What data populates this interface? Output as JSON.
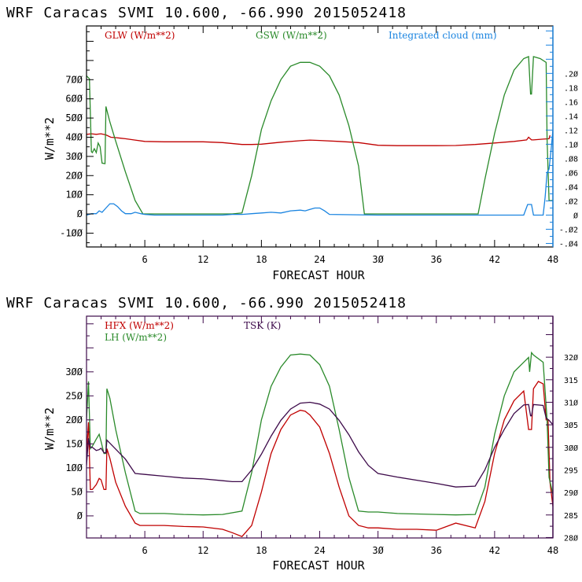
{
  "chart_data": [
    {
      "type": "line",
      "title": "WRF  Caracas SVMI  10.600, -66.990  2015052418",
      "xlabel": "FORECAST HOUR",
      "ylabel": "W/m**2",
      "y2label": "",
      "xlim": [
        0,
        48
      ],
      "ylim": [
        -172,
        980
      ],
      "y2lim": [
        -0.045,
        0.267
      ],
      "xticks": [
        6,
        12,
        18,
        24,
        30,
        36,
        42,
        48
      ],
      "xtick_labels": [
        "6",
        "12",
        "18",
        "24",
        "3Ø",
        "36",
        "42",
        "48"
      ],
      "yticks": [
        -100,
        0,
        100,
        200,
        300,
        400,
        500,
        600,
        700
      ],
      "ytick_labels": [
        "-1ØØ",
        "Ø",
        "1ØØ",
        "2ØØ",
        "3ØØ",
        "4ØØ",
        "5ØØ",
        "6ØØ",
        "7ØØ"
      ],
      "y2ticks": [
        -0.04,
        -0.02,
        0,
        0.02,
        0.04,
        0.06,
        0.08,
        0.1,
        0.12,
        0.14,
        0.16,
        0.18,
        0.2
      ],
      "y2tick_labels": [
        "-.Ø4",
        "-.Ø2",
        "Ø",
        ".Ø2",
        ".Ø4",
        ".Ø6",
        ".Ø8",
        ".1Ø",
        ".12",
        ".14",
        ".16",
        ".18",
        ".2Ø"
      ],
      "frame_color": "#000000",
      "right_axis_color": "#1a84e0",
      "grid": false,
      "legend_position": "top-inside",
      "series": [
        {
          "name": "GLW (W/m**2)",
          "color": "#c00000",
          "axis": "left",
          "x": [
            0,
            0.5,
            1,
            1.5,
            2,
            2.5,
            3,
            3.5,
            4,
            5,
            6,
            8,
            10,
            12,
            14,
            16,
            17,
            18,
            20,
            22,
            23,
            24,
            26,
            28,
            30,
            32,
            34,
            36,
            38,
            40,
            42,
            44,
            45.3,
            45.5,
            45.8,
            46,
            47,
            47.6,
            47.7
          ],
          "values": [
            415,
            418,
            415,
            418,
            412,
            400,
            398,
            395,
            392,
            385,
            378,
            376,
            376,
            376,
            372,
            362,
            362,
            364,
            374,
            382,
            385,
            383,
            378,
            372,
            358,
            356,
            356,
            356,
            357,
            362,
            370,
            378,
            386,
            400,
            386,
            386,
            390,
            392,
            410
          ]
        },
        {
          "name": "GSW (W/m**2)",
          "color": "#2a8a2a",
          "axis": "left",
          "x": [
            0,
            0.3,
            0.5,
            0.6,
            0.8,
            1,
            1.2,
            1.4,
            1.6,
            1.9,
            2,
            2.1,
            2.4,
            3,
            4,
            5,
            5.8,
            6,
            10,
            15,
            16,
            17,
            18,
            19,
            20,
            21,
            22,
            23,
            24,
            25,
            26,
            27,
            28,
            28.6,
            30,
            35,
            40.3,
            41,
            42,
            43,
            44,
            45,
            45.5,
            45.7,
            45.8,
            46,
            46.7,
            47.3,
            47.4,
            47.6,
            48
          ],
          "values": [
            720,
            705,
            325,
            320,
            340,
            320,
            370,
            350,
            265,
            262,
            560,
            540,
            480,
            380,
            220,
            70,
            0,
            0,
            0,
            0,
            5,
            200,
            440,
            590,
            700,
            770,
            790,
            790,
            770,
            720,
            620,
            460,
            250,
            0,
            0,
            0,
            0,
            180,
            420,
            620,
            750,
            810,
            820,
            625,
            625,
            820,
            810,
            790,
            390,
            70,
            70
          ]
        },
        {
          "name": "Integrated cloud (mm)",
          "color": "#1a84e0",
          "axis": "right",
          "x": [
            0,
            0.5,
            1,
            1.3,
            1.6,
            2,
            2.4,
            2.8,
            3.2,
            3.6,
            4,
            4.6,
            5,
            5.6,
            6,
            7,
            8,
            10,
            14,
            15,
            16,
            17,
            18,
            19,
            20,
            21,
            22,
            22.5,
            23,
            23.5,
            24,
            24.5,
            25,
            30,
            35,
            40,
            45,
            45.4,
            45.5,
            45.8,
            46,
            47,
            47.2,
            47.4,
            47.6,
            47.8,
            48
          ],
          "values": [
            0,
            0.002,
            0.002,
            0.006,
            0.004,
            0.01,
            0.016,
            0.016,
            0.012,
            0.006,
            0.002,
            0.002,
            0.004,
            0.002,
            0.001,
            0,
            0,
            0,
            0,
            0.001,
            0.001,
            0.002,
            0.003,
            0.004,
            0.003,
            0.006,
            0.007,
            0.006,
            0.008,
            0.01,
            0.01,
            0.006,
            0.001,
            0,
            0,
            0,
            0,
            0.015,
            0.015,
            0.015,
            0,
            0,
            0.025,
            0.06,
            0.065,
            0.09,
            0.12
          ]
        }
      ]
    },
    {
      "type": "line",
      "title": "WRF  Caracas SVMI  10.600, -66.990  2015052418",
      "xlabel": "FORECAST HOUR",
      "ylabel": "W/m**2",
      "y2label": "",
      "xlim": [
        0,
        48
      ],
      "ylim": [
        -46,
        416
      ],
      "y2lim": [
        279.9,
        329.1
      ],
      "xticks": [
        6,
        12,
        18,
        24,
        30,
        36,
        42,
        48
      ],
      "xtick_labels": [
        "6",
        "12",
        "18",
        "24",
        "3Ø",
        "36",
        "42",
        "48"
      ],
      "yticks": [
        0,
        50,
        100,
        150,
        200,
        250,
        300
      ],
      "ytick_labels": [
        "Ø",
        "5Ø",
        "1ØØ",
        "15Ø",
        "2ØØ",
        "25Ø",
        "3ØØ"
      ],
      "y2ticks": [
        280,
        285,
        290,
        295,
        300,
        305,
        310,
        315,
        320
      ],
      "y2tick_labels": [
        "28Ø",
        "285",
        "29Ø",
        "295",
        "3ØØ",
        "3Ø5",
        "31Ø",
        "315",
        "32Ø"
      ],
      "frame_color": "#3d0a4a",
      "right_axis_color": "#3d0a4a",
      "grid": false,
      "legend_position": "top-inside",
      "series": [
        {
          "name": "HFX (W/m**2)",
          "color": "#c00000",
          "axis": "left",
          "x": [
            0,
            0.2,
            0.4,
            0.6,
            1,
            1.3,
            1.5,
            1.8,
            2,
            2.1,
            2.4,
            3,
            4,
            5,
            5.5,
            6,
            8,
            10,
            12,
            14,
            15,
            16,
            17,
            18,
            19,
            20,
            21,
            22,
            22.5,
            23,
            24,
            25,
            26,
            27,
            28,
            29,
            30,
            32,
            34,
            36,
            38,
            40,
            41,
            42,
            43,
            44,
            45,
            45.5,
            45.8,
            46,
            46.5,
            47,
            47.3,
            47.5,
            47.7,
            48
          ],
          "values": [
            130,
            195,
            55,
            55,
            65,
            78,
            75,
            55,
            55,
            140,
            120,
            70,
            20,
            -15,
            -20,
            -20,
            -20,
            -22,
            -23,
            -28,
            -35,
            -43,
            -20,
            50,
            130,
            180,
            210,
            220,
            218,
            210,
            185,
            130,
            60,
            0,
            -20,
            -25,
            -25,
            -28,
            -28,
            -30,
            -15,
            -25,
            30,
            130,
            200,
            240,
            260,
            180,
            180,
            265,
            280,
            275,
            200,
            200,
            70,
            20
          ]
        },
        {
          "name": "LH (W/m**2)",
          "color": "#2a8a2a",
          "axis": "left",
          "x": [
            0,
            0.2,
            0.4,
            0.6,
            1,
            1.3,
            1.5,
            1.8,
            2,
            2.1,
            2.4,
            3,
            4,
            5,
            5.5,
            6,
            8,
            10,
            12,
            14,
            16,
            17,
            18,
            19,
            20,
            21,
            22,
            23,
            24,
            25,
            26,
            27,
            28,
            29,
            30,
            32,
            34,
            36,
            38,
            40,
            41,
            42,
            43,
            44,
            45,
            45.5,
            45.6,
            45.8,
            46,
            47,
            47.4,
            47.6,
            48
          ],
          "values": [
            200,
            280,
            140,
            145,
            160,
            170,
            155,
            130,
            130,
            265,
            245,
            180,
            90,
            10,
            5,
            5,
            5,
            3,
            2,
            3,
            10,
            90,
            200,
            270,
            310,
            335,
            337,
            335,
            315,
            270,
            180,
            80,
            10,
            8,
            8,
            5,
            4,
            3,
            2,
            3,
            60,
            170,
            250,
            300,
            320,
            330,
            300,
            340,
            335,
            320,
            200,
            80,
            45
          ]
        },
        {
          "name": "TSK (K)",
          "color": "#3d0a4a",
          "axis": "right",
          "x": [
            0,
            0.2,
            0.4,
            0.6,
            1,
            1.3,
            1.5,
            1.8,
            2,
            2.1,
            3,
            4,
            5,
            6,
            8,
            10,
            12,
            14,
            15,
            16,
            17,
            18,
            19,
            20,
            21,
            22,
            23,
            24,
            25,
            26,
            27,
            28,
            29,
            30,
            32,
            34,
            36,
            38,
            40,
            41,
            42,
            43,
            44,
            45,
            45.5,
            45.7,
            45.8,
            46,
            47,
            47.3,
            47.6,
            48
          ],
          "values": [
            296,
            302,
            300,
            300,
            299.3,
            299.5,
            299.8,
            298.8,
            298.8,
            301.6,
            299.6,
            297.4,
            294.2,
            294,
            293.6,
            293.2,
            293,
            292.6,
            292.4,
            292.4,
            295,
            298.5,
            302.5,
            306,
            308.5,
            309.8,
            310,
            309.6,
            308.5,
            306,
            302.8,
            299,
            296,
            294.2,
            293.4,
            292.7,
            292,
            291.2,
            291.4,
            295,
            300,
            304,
            307.5,
            309.4,
            309.5,
            307,
            307,
            309.5,
            309.3,
            306.5,
            306,
            305
          ]
        }
      ]
    }
  ]
}
